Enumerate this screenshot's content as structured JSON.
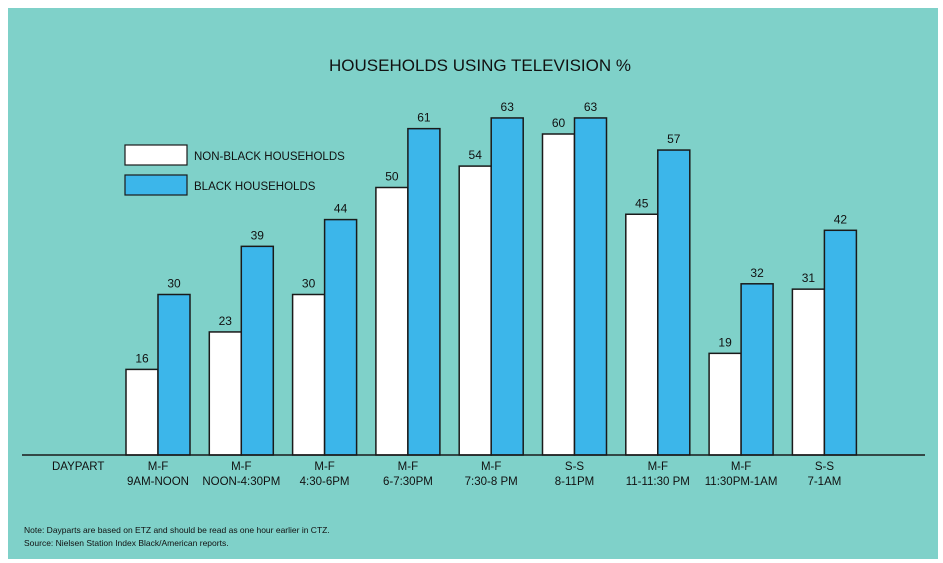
{
  "chart_data": {
    "type": "bar",
    "title": "HOUSEHOLDS USING TELEVISION %",
    "xlabel": "DAYPART",
    "ylabel": "",
    "ylim": [
      0,
      70
    ],
    "grid": false,
    "legend_position": "top-left",
    "categories": [
      [
        "M-F",
        "9AM-NOON"
      ],
      [
        "M-F",
        "NOON-4:30PM"
      ],
      [
        "M-F",
        "4:30-6PM"
      ],
      [
        "M-F",
        "6-7:30PM"
      ],
      [
        "M-F",
        "7:30-8 PM"
      ],
      [
        "S-S",
        "8-11PM"
      ],
      [
        "M-F",
        "11-11:30 PM"
      ],
      [
        "M-F",
        "11:30PM-1AM"
      ],
      [
        "S-S",
        "7-1AM"
      ]
    ],
    "series": [
      {
        "name": "NON-BLACK HOUSEHOLDS",
        "color": "#ffffff",
        "values": [
          16,
          23,
          30,
          50,
          54,
          60,
          45,
          19,
          31
        ]
      },
      {
        "name": "BLACK HOUSEHOLDS",
        "color": "#3cb6ea",
        "values": [
          30,
          39,
          44,
          61,
          63,
          63,
          57,
          32,
          42
        ]
      }
    ],
    "notes": [
      "Note: Dayparts are based on ETZ and should be read as one hour earlier in CTZ.",
      "Source: Nielsen Station Index Black/American reports."
    ]
  },
  "colors": {
    "background": "#7fd1c9",
    "outline": "#1a1a1a"
  }
}
